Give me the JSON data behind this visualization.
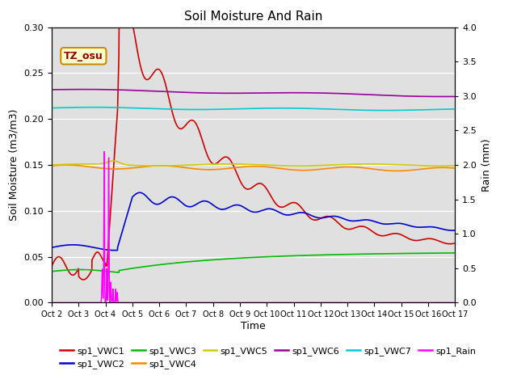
{
  "title": "Soil Moisture And Rain",
  "xlabel": "Time",
  "ylabel_left": "Soil Moisture (m3/m3)",
  "ylabel_right": "Rain (mm)",
  "annotation": "TZ_osu",
  "ylim_left": [
    0.0,
    0.3
  ],
  "ylim_right": [
    0.0,
    4.0
  ],
  "xtick_labels": [
    "Oct 2",
    "Oct 3",
    "Oct 4",
    "Oct 5",
    "Oct 6",
    "Oct 7",
    "Oct 8",
    "Oct 9",
    "Oct 10",
    "Oct 11",
    "Oct 12",
    "Oct 13",
    "Oct 14",
    "Oct 15",
    "Oct 16",
    "Oct 17"
  ],
  "colors": {
    "VWC1": "#cc0000",
    "VWC2": "#0000cc",
    "VWC3": "#00bb00",
    "VWC4": "#ff8800",
    "VWC5": "#cccc00",
    "VWC6": "#990099",
    "VWC7": "#00cccc",
    "Rain": "#ff00ff"
  },
  "background_color": "#e0e0e0",
  "grid_color": "#ffffff",
  "legend_items": [
    {
      "label": "sp1_VWC1",
      "color": "#cc0000"
    },
    {
      "label": "sp1_VWC2",
      "color": "#0000cc"
    },
    {
      "label": "sp1_VWC3",
      "color": "#00bb00"
    },
    {
      "label": "sp1_VWC4",
      "color": "#ff8800"
    },
    {
      "label": "sp1_VWC5",
      "color": "#cccc00"
    },
    {
      "label": "sp1_VWC6",
      "color": "#990099"
    },
    {
      "label": "sp1_VWC7",
      "color": "#00cccc"
    },
    {
      "label": "sp1_Rain",
      "color": "#ff00ff"
    }
  ]
}
